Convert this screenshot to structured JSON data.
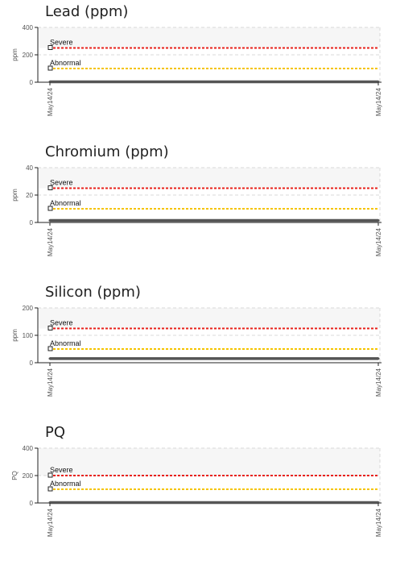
{
  "chart_data": [
    {
      "type": "line",
      "title": "Lead (ppm)",
      "ylabel": "ppm",
      "ylim": [
        0,
        400
      ],
      "yticks": [
        0,
        200,
        400
      ],
      "xticks": [
        "May14/24",
        "May14/24"
      ],
      "thresholds": [
        {
          "label": "Severe",
          "value": 250,
          "color": "#e8211b"
        },
        {
          "label": "Abnormal",
          "value": 100,
          "color": "#f5c400"
        }
      ],
      "series": [
        {
          "values": [
            3,
            3
          ],
          "color": "#555555"
        }
      ]
    },
    {
      "type": "line",
      "title": "Chromium (ppm)",
      "ylabel": "ppm",
      "ylim": [
        0,
        40
      ],
      "yticks": [
        0,
        20,
        40
      ],
      "xticks": [
        "May14/24",
        "May14/24"
      ],
      "thresholds": [
        {
          "label": "Severe",
          "value": 25,
          "color": "#e8211b"
        },
        {
          "label": "Abnormal",
          "value": 10,
          "color": "#f5c400"
        }
      ],
      "series": [
        {
          "values": [
            1.5,
            1.5
          ],
          "color": "#555555"
        }
      ]
    },
    {
      "type": "line",
      "title": "Silicon (ppm)",
      "ylabel": "ppm",
      "ylim": [
        0,
        200
      ],
      "yticks": [
        0,
        100,
        200
      ],
      "xticks": [
        "May14/24",
        "May14/24"
      ],
      "thresholds": [
        {
          "label": "Severe",
          "value": 125,
          "color": "#e8211b"
        },
        {
          "label": "Abnormal",
          "value": 50,
          "color": "#f5c400"
        }
      ],
      "series": [
        {
          "values": [
            15,
            15
          ],
          "color": "#555555"
        }
      ]
    },
    {
      "type": "line",
      "title": "PQ",
      "ylabel": "PQ",
      "ylim": [
        0,
        400
      ],
      "yticks": [
        0,
        200,
        400
      ],
      "xticks": [
        "May14/24",
        "May14/24"
      ],
      "thresholds": [
        {
          "label": "Severe",
          "value": 200,
          "color": "#e8211b"
        },
        {
          "label": "Abnormal",
          "value": 100,
          "color": "#f5c400"
        }
      ],
      "series": [
        {
          "values": [
            3,
            3
          ],
          "color": "#555555"
        }
      ]
    }
  ]
}
